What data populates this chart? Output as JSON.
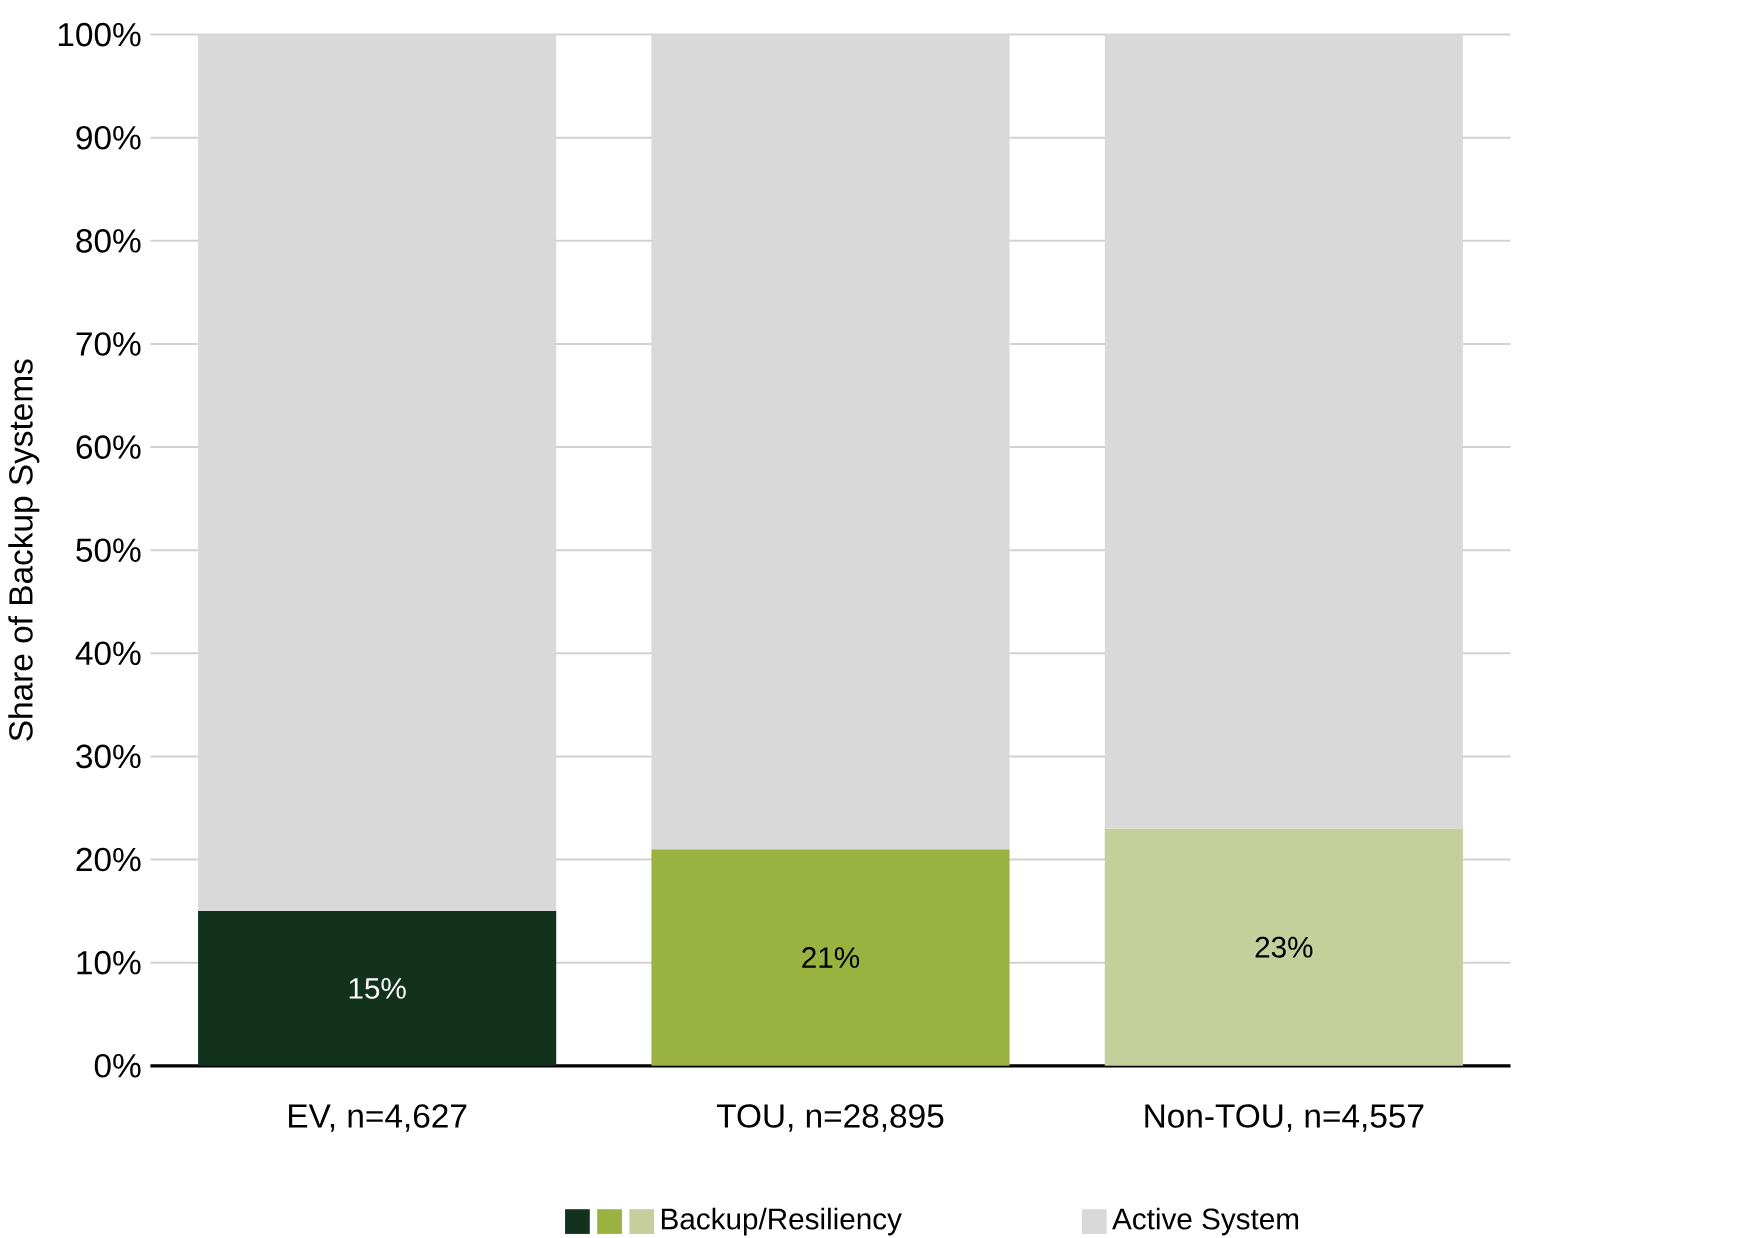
{
  "chart_data": {
    "type": "bar",
    "ylabel": "Share of Backup Systems",
    "categories": [
      "EV, n=4,627",
      "TOU, n=28,895",
      "Non-TOU, n=4,557"
    ],
    "stacked": true,
    "ylim": [
      0,
      100
    ],
    "yticks": [
      {
        "value": 0,
        "label": "0%"
      },
      {
        "value": 10,
        "label": "10%"
      },
      {
        "value": 20,
        "label": "20%"
      },
      {
        "value": 30,
        "label": "30%"
      },
      {
        "value": 40,
        "label": "40%"
      },
      {
        "value": 50,
        "label": "50%"
      },
      {
        "value": 60,
        "label": "60%"
      },
      {
        "value": 70,
        "label": "70%"
      },
      {
        "value": 80,
        "label": "80%"
      },
      {
        "value": 90,
        "label": "90%"
      },
      {
        "value": 100,
        "label": "100%"
      }
    ],
    "grid": "y",
    "legend": "bottom",
    "series": [
      {
        "name": "Backup/Resiliency",
        "colors": [
          "#12321e",
          "#9ab340",
          "#c5cf9c"
        ],
        "values": [
          15,
          21,
          23
        ],
        "value_labels": [
          "15%",
          "21%",
          "23%"
        ]
      },
      {
        "name": "Active System",
        "color": "#d9d9d9",
        "values": [
          85,
          79,
          77
        ]
      }
    ]
  }
}
